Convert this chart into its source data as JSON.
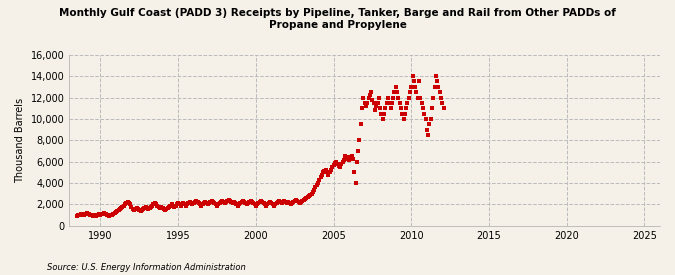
{
  "title": "Monthly Gulf Coast (PADD 3) Receipts by Pipeline, Tanker, Barge and Rail from Other PADDs of\nPropane and Propylene",
  "ylabel": "Thousand Barrels",
  "source": "Source: U.S. Energy Information Administration",
  "background_color": "#f5f0e8",
  "line_color": "#cc0000",
  "marker": "s",
  "markersize": 2.5,
  "xlim": [
    1988.0,
    2026.0
  ],
  "ylim": [
    0,
    16000
  ],
  "yticks": [
    0,
    2000,
    4000,
    6000,
    8000,
    10000,
    12000,
    14000,
    16000
  ],
  "xticks": [
    1990,
    1995,
    2000,
    2005,
    2010,
    2015,
    2020,
    2025
  ],
  "grid_color": "#bbbbbb",
  "grid_style": "--",
  "start_year": 1988,
  "start_month": 7,
  "values": [
    950,
    1000,
    1050,
    1100,
    1050,
    1000,
    1100,
    1150,
    1200,
    1150,
    1050,
    1000,
    950,
    1000,
    950,
    900,
    1000,
    1100,
    1050,
    1100,
    1150,
    1200,
    1100,
    1050,
    1000,
    950,
    1000,
    1050,
    1100,
    1200,
    1300,
    1400,
    1500,
    1600,
    1700,
    1800,
    1900,
    2000,
    2100,
    2200,
    2100,
    2000,
    1800,
    1600,
    1500,
    1600,
    1700,
    1600,
    1500,
    1400,
    1500,
    1600,
    1700,
    1800,
    1700,
    1600,
    1700,
    1800,
    1900,
    2000,
    2100,
    2000,
    1900,
    1800,
    1700,
    1800,
    1700,
    1600,
    1500,
    1600,
    1700,
    1800,
    1900,
    2000,
    1900,
    1800,
    1900,
    2000,
    2100,
    2000,
    1900,
    2000,
    2100,
    2000,
    1900,
    2000,
    2100,
    2200,
    2100,
    2000,
    2100,
    2200,
    2300,
    2200,
    2100,
    2000,
    1900,
    2000,
    2100,
    2200,
    2100,
    2000,
    2100,
    2200,
    2300,
    2200,
    2100,
    2000,
    1900,
    2000,
    2100,
    2200,
    2300,
    2200,
    2100,
    2200,
    2300,
    2400,
    2300,
    2200,
    2100,
    2200,
    2100,
    2000,
    1900,
    2000,
    2100,
    2200,
    2300,
    2200,
    2100,
    2000,
    2100,
    2200,
    2300,
    2200,
    2100,
    2000,
    1900,
    2000,
    2100,
    2200,
    2300,
    2200,
    2100,
    2000,
    1900,
    2000,
    2100,
    2200,
    2100,
    2000,
    1900,
    2000,
    2100,
    2200,
    2300,
    2200,
    2100,
    2200,
    2300,
    2200,
    2100,
    2200,
    2100,
    2000,
    2100,
    2200,
    2300,
    2400,
    2300,
    2200,
    2100,
    2200,
    2300,
    2400,
    2500,
    2600,
    2700,
    2800,
    2900,
    3000,
    3200,
    3400,
    3600,
    3800,
    4000,
    4300,
    4600,
    4800,
    5000,
    5100,
    5200,
    5000,
    4800,
    5000,
    5200,
    5500,
    5700,
    5900,
    6000,
    5800,
    5600,
    5500,
    5800,
    6000,
    6200,
    6500,
    6400,
    6300,
    6200,
    6400,
    6500,
    6300,
    5000,
    4000,
    6000,
    7000,
    8000,
    9500,
    11000,
    12000,
    11500,
    11200,
    11500,
    12000,
    12200,
    12500,
    11800,
    11500,
    10800,
    11200,
    11500,
    12000,
    11000,
    10500,
    10000,
    10500,
    11000,
    11500,
    12000,
    11500,
    11000,
    11500,
    12000,
    12500,
    13000,
    12500,
    12000,
    11500,
    11000,
    10500,
    10000,
    10500,
    11000,
    11500,
    12000,
    12500,
    13000,
    14000,
    13500,
    13000,
    12500,
    12000,
    13500,
    12000,
    11500,
    11000,
    10500,
    10000,
    9000,
    8500,
    9500,
    10000,
    11000,
    12000,
    13000,
    14000,
    13500,
    13000,
    12500,
    12000,
    11500,
    11000
  ]
}
